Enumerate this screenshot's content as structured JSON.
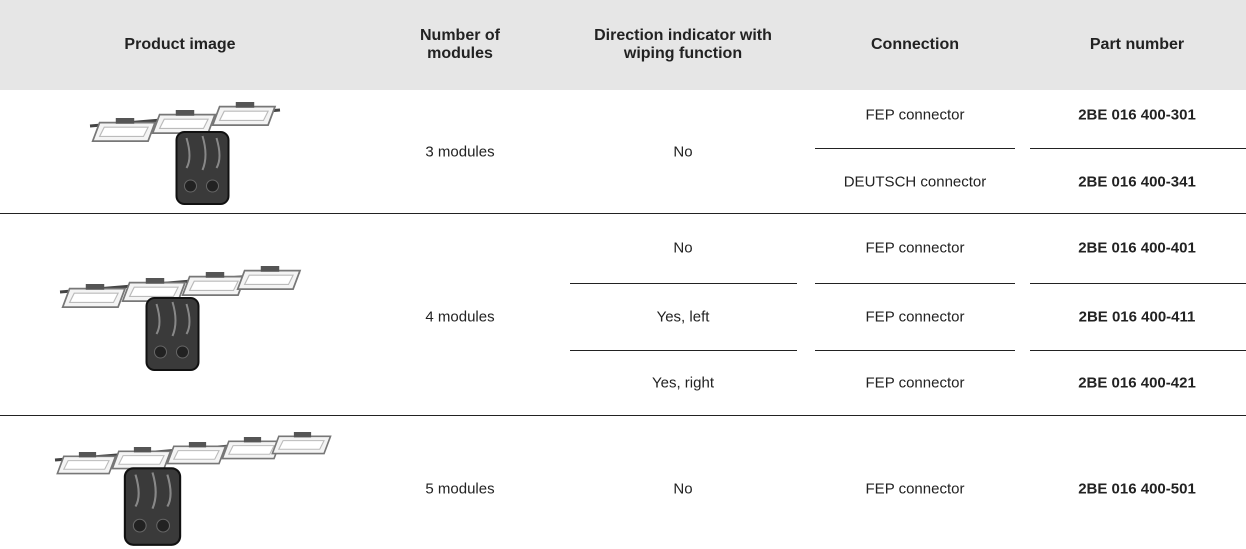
{
  "header": {
    "columns": [
      "Product image",
      "Number of modules",
      "Direction indicator with wiping function",
      "Connection",
      "Part number"
    ]
  },
  "groups": [
    {
      "modules": "3 modules",
      "direction": "No",
      "rows": [
        {
          "connection": "FEP connector",
          "part": "2BE 016 400-301"
        },
        {
          "connection": "DEUTSCH connector",
          "part": "2BE 016 400-341"
        }
      ]
    },
    {
      "modules": "4 modules",
      "rows": [
        {
          "direction": "No",
          "connection": "FEP connector",
          "part": "2BE 016 400-401"
        },
        {
          "direction": "Yes, left",
          "connection": "FEP connector",
          "part": "2BE 016 400-411"
        },
        {
          "direction": "Yes, right",
          "connection": "FEP connector",
          "part": "2BE 016 400-421"
        }
      ]
    },
    {
      "modules": "5 modules",
      "direction": "No",
      "rows": [
        {
          "connection": "FEP connector",
          "part": "2BE 016 400-501"
        }
      ]
    }
  ]
}
